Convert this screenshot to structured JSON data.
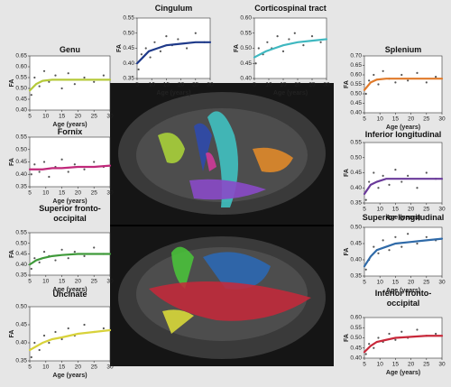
{
  "chart_data": [
    {
      "type": "scatter",
      "title": "Genu",
      "xlabel": "Age (years)",
      "ylabel": "FA",
      "xlim": [
        5,
        30
      ],
      "ylim": [
        0.4,
        0.65
      ],
      "xticks": [
        5,
        10,
        15,
        20,
        25,
        30
      ],
      "yticks": [
        {
          "value": 0.4,
          "label": "0.40"
        },
        0.45,
        {
          "value": 0.5,
          "label": "0.50"
        },
        0.55,
        {
          "value": 0.6,
          "label": "0.60"
        },
        0.65
      ],
      "series": [
        {
          "type": "scatter",
          "color": "#555555",
          "x": [
            5.5,
            6.5,
            8,
            9.5,
            11,
            13,
            15,
            17,
            19,
            22,
            25,
            28
          ],
          "values": [
            0.47,
            0.55,
            0.51,
            0.58,
            0.53,
            0.56,
            0.5,
            0.57,
            0.52,
            0.55,
            0.53,
            0.56
          ]
        },
        {
          "type": "line",
          "color": "#b5c93a",
          "x": [
            5,
            7,
            9,
            12,
            15,
            20,
            25,
            30
          ],
          "values": [
            0.49,
            0.52,
            0.535,
            0.54,
            0.54,
            0.54,
            0.54,
            0.54
          ]
        }
      ]
    },
    {
      "type": "scatter",
      "title": "Fornix",
      "xlabel": "Age (years)",
      "ylabel": "FA",
      "xlim": [
        5,
        30
      ],
      "ylim": [
        0.35,
        0.55
      ],
      "xticks": [
        5,
        10,
        15,
        20,
        25,
        30
      ],
      "yticks": [
        0.35,
        {
          "value": 0.4,
          "label": "0.40"
        },
        0.45,
        {
          "value": 0.5,
          "label": "0.50"
        },
        0.55
      ],
      "series": [
        {
          "type": "scatter",
          "color": "#555555",
          "x": [
            5.5,
            6.5,
            8,
            9.5,
            11,
            13,
            15,
            17,
            19,
            22,
            25,
            28
          ],
          "values": [
            0.4,
            0.44,
            0.41,
            0.45,
            0.39,
            0.43,
            0.46,
            0.41,
            0.44,
            0.42,
            0.45,
            0.43
          ]
        },
        {
          "type": "line",
          "color": "#c0287a",
          "x": [
            5,
            7,
            9,
            12,
            15,
            20,
            25,
            30
          ],
          "values": [
            0.42,
            0.42,
            0.42,
            0.425,
            0.425,
            0.43,
            0.43,
            0.435
          ]
        }
      ]
    },
    {
      "type": "scatter",
      "title": "Superior fronto-occipital",
      "xlabel": "Age (years)",
      "ylabel": "FA",
      "xlim": [
        5,
        30
      ],
      "ylim": [
        0.35,
        0.55
      ],
      "xticks": [
        5,
        10,
        15,
        20,
        25,
        30
      ],
      "yticks": [
        0.35,
        {
          "value": 0.4,
          "label": "0.40"
        },
        0.45,
        {
          "value": 0.5,
          "label": "0.50"
        },
        0.55
      ],
      "series": [
        {
          "type": "scatter",
          "color": "#555555",
          "x": [
            5.5,
            6.5,
            8,
            9.5,
            11,
            13,
            15,
            17,
            19,
            22,
            25,
            28
          ],
          "values": [
            0.38,
            0.43,
            0.41,
            0.46,
            0.44,
            0.42,
            0.47,
            0.43,
            0.46,
            0.44,
            0.48,
            0.45
          ]
        },
        {
          "type": "line",
          "color": "#3f9a3a",
          "x": [
            5,
            7,
            9,
            12,
            15,
            20,
            25,
            30
          ],
          "values": [
            0.4,
            0.42,
            0.43,
            0.44,
            0.445,
            0.45,
            0.45,
            0.45
          ]
        }
      ]
    },
    {
      "type": "scatter",
      "title": "Uncinate",
      "xlabel": "Age (years)",
      "ylabel": "FA",
      "xlim": [
        5,
        30
      ],
      "ylim": [
        0.35,
        0.5
      ],
      "xticks": [
        5,
        10,
        15,
        20,
        25,
        30
      ],
      "yticks": [
        0.35,
        {
          "value": 0.4,
          "label": "0.40"
        },
        0.45,
        {
          "value": 0.5,
          "label": "0.50"
        }
      ],
      "series": [
        {
          "type": "scatter",
          "color": "#555555",
          "x": [
            5.5,
            6.5,
            8,
            9.5,
            11,
            13,
            15,
            17,
            19,
            22,
            25,
            28
          ],
          "values": [
            0.36,
            0.4,
            0.38,
            0.42,
            0.4,
            0.43,
            0.41,
            0.44,
            0.42,
            0.45,
            0.43,
            0.44
          ]
        },
        {
          "type": "line",
          "color": "#d8d23a",
          "x": [
            5,
            7,
            9,
            12,
            15,
            20,
            25,
            30
          ],
          "values": [
            0.38,
            0.39,
            0.4,
            0.41,
            0.415,
            0.425,
            0.43,
            0.435
          ]
        }
      ]
    },
    {
      "type": "scatter",
      "title": "Cingulum",
      "xlabel": "Age (years)",
      "ylabel": "FA",
      "xlim": [
        5,
        30
      ],
      "ylim": [
        0.35,
        0.55
      ],
      "xticks": [
        5,
        10,
        15,
        20,
        25,
        30
      ],
      "yticks": [
        0.35,
        {
          "value": 0.4,
          "label": "0.40"
        },
        0.45,
        {
          "value": 0.5,
          "label": "0.50"
        },
        0.55
      ],
      "series": [
        {
          "type": "scatter",
          "color": "#555555",
          "x": [
            5.5,
            6.5,
            8,
            9.5,
            11,
            13,
            15,
            17,
            19,
            22,
            25,
            28
          ],
          "values": [
            0.38,
            0.43,
            0.45,
            0.42,
            0.47,
            0.44,
            0.49,
            0.46,
            0.48,
            0.45,
            0.5,
            0.47
          ]
        },
        {
          "type": "line",
          "color": "#1f3a8a",
          "x": [
            5,
            7,
            9,
            12,
            15,
            20,
            25,
            30
          ],
          "values": [
            0.4,
            0.42,
            0.44,
            0.45,
            0.46,
            0.465,
            0.47,
            0.47
          ]
        }
      ]
    },
    {
      "type": "scatter",
      "title": "Corticospinal tract",
      "xlabel": "Age (years)",
      "ylabel": "FA",
      "xlim": [
        5,
        30
      ],
      "ylim": [
        0.4,
        0.6
      ],
      "xticks": [
        5,
        10,
        15,
        20,
        25,
        30
      ],
      "yticks": [
        {
          "value": 0.4,
          "label": "0.40"
        },
        0.45,
        {
          "value": 0.5,
          "label": "0.50"
        },
        0.55,
        {
          "value": 0.6,
          "label": "0.60"
        }
      ],
      "series": [
        {
          "type": "scatter",
          "color": "#555555",
          "x": [
            5.5,
            6.5,
            8,
            9.5,
            11,
            13,
            15,
            17,
            19,
            22,
            25,
            28
          ],
          "values": [
            0.45,
            0.5,
            0.48,
            0.52,
            0.5,
            0.54,
            0.49,
            0.53,
            0.55,
            0.51,
            0.54,
            0.52
          ]
        },
        {
          "type": "line",
          "color": "#3fb8c0",
          "x": [
            5,
            7,
            9,
            12,
            15,
            20,
            25,
            30
          ],
          "values": [
            0.47,
            0.48,
            0.49,
            0.5,
            0.51,
            0.52,
            0.525,
            0.53
          ]
        }
      ]
    },
    {
      "type": "scatter",
      "title": "Splenium",
      "xlabel": "Age (years)",
      "ylabel": "FA",
      "xlim": [
        5,
        30
      ],
      "ylim": [
        0.4,
        0.7
      ],
      "xticks": [
        5,
        10,
        15,
        20,
        25,
        30
      ],
      "yticks": [
        {
          "value": 0.4,
          "label": "0.40"
        },
        0.45,
        {
          "value": 0.5,
          "label": "0.50"
        },
        0.55,
        {
          "value": 0.6,
          "label": "0.60"
        },
        0.65,
        {
          "value": 0.7,
          "label": "0.70"
        }
      ],
      "series": [
        {
          "type": "scatter",
          "color": "#555555",
          "x": [
            5.5,
            6.5,
            8,
            9.5,
            11,
            13,
            15,
            17,
            19,
            22,
            25,
            28
          ],
          "values": [
            0.5,
            0.57,
            0.6,
            0.55,
            0.62,
            0.58,
            0.56,
            0.6,
            0.57,
            0.61,
            0.56,
            0.59
          ]
        },
        {
          "type": "line",
          "color": "#e07a2a",
          "x": [
            5,
            7,
            9,
            12,
            15,
            20,
            25,
            30
          ],
          "values": [
            0.52,
            0.56,
            0.575,
            0.58,
            0.58,
            0.58,
            0.58,
            0.58
          ]
        }
      ]
    },
    {
      "type": "scatter",
      "title": "Inferior longitudinal",
      "xlabel": "Age (years)",
      "ylabel": "FA",
      "xlim": [
        5,
        30
      ],
      "ylim": [
        0.35,
        0.55
      ],
      "xticks": [
        5,
        10,
        15,
        20,
        25,
        30
      ],
      "yticks": [
        0.35,
        {
          "value": 0.4,
          "label": "0.40"
        },
        0.45,
        {
          "value": 0.5,
          "label": "0.50"
        },
        0.55
      ],
      "series": [
        {
          "type": "scatter",
          "color": "#555555",
          "x": [
            5.5,
            6.5,
            8,
            9.5,
            11,
            13,
            15,
            17,
            19,
            22,
            25,
            28
          ],
          "values": [
            0.36,
            0.42,
            0.45,
            0.4,
            0.44,
            0.41,
            0.46,
            0.42,
            0.44,
            0.4,
            0.45,
            0.43
          ]
        },
        {
          "type": "line",
          "color": "#6a3a9a",
          "x": [
            5,
            7,
            9,
            12,
            15,
            20,
            25,
            30
          ],
          "values": [
            0.38,
            0.41,
            0.42,
            0.43,
            0.43,
            0.43,
            0.43,
            0.43
          ]
        }
      ]
    },
    {
      "type": "scatter",
      "title": "Superior longitudinal",
      "xlabel": "Age (years)",
      "ylabel": "FA",
      "xlim": [
        5,
        30
      ],
      "ylim": [
        0.35,
        0.5
      ],
      "xticks": [
        5,
        10,
        15,
        20,
        25,
        30
      ],
      "yticks": [
        0.35,
        {
          "value": 0.4,
          "label": "0.40"
        },
        0.45,
        {
          "value": 0.5,
          "label": "0.50"
        }
      ],
      "series": [
        {
          "type": "scatter",
          "color": "#555555",
          "x": [
            5.5,
            6.5,
            8,
            9.5,
            11,
            13,
            15,
            17,
            19,
            22,
            25,
            28
          ],
          "values": [
            0.37,
            0.4,
            0.44,
            0.42,
            0.46,
            0.43,
            0.47,
            0.44,
            0.48,
            0.45,
            0.47,
            0.46
          ]
        },
        {
          "type": "line",
          "color": "#2f6aa8",
          "x": [
            5,
            7,
            9,
            12,
            15,
            20,
            25,
            30
          ],
          "values": [
            0.38,
            0.41,
            0.43,
            0.44,
            0.45,
            0.455,
            0.46,
            0.465
          ]
        }
      ]
    },
    {
      "type": "scatter",
      "title": "Inferior fronto-occipital",
      "xlabel": "Age (years)",
      "ylabel": "FA",
      "xlim": [
        5,
        30
      ],
      "ylim": [
        0.4,
        0.6
      ],
      "xticks": [
        5,
        10,
        15,
        20,
        25,
        30
      ],
      "yticks": [
        {
          "value": 0.4,
          "label": "0.40"
        },
        0.45,
        {
          "value": 0.5,
          "label": "0.50"
        },
        0.55,
        {
          "value": 0.6,
          "label": "0.60"
        }
      ],
      "series": [
        {
          "type": "scatter",
          "color": "#555555",
          "x": [
            5.5,
            6.5,
            8,
            9.5,
            11,
            13,
            15,
            17,
            19,
            22,
            25,
            28
          ],
          "values": [
            0.42,
            0.47,
            0.45,
            0.5,
            0.48,
            0.52,
            0.49,
            0.53,
            0.5,
            0.54,
            0.51,
            0.52
          ]
        },
        {
          "type": "line",
          "color": "#c8283a",
          "x": [
            5,
            7,
            9,
            12,
            15,
            20,
            25,
            30
          ],
          "values": [
            0.43,
            0.46,
            0.48,
            0.49,
            0.5,
            0.505,
            0.51,
            0.51
          ]
        }
      ]
    }
  ]
}
